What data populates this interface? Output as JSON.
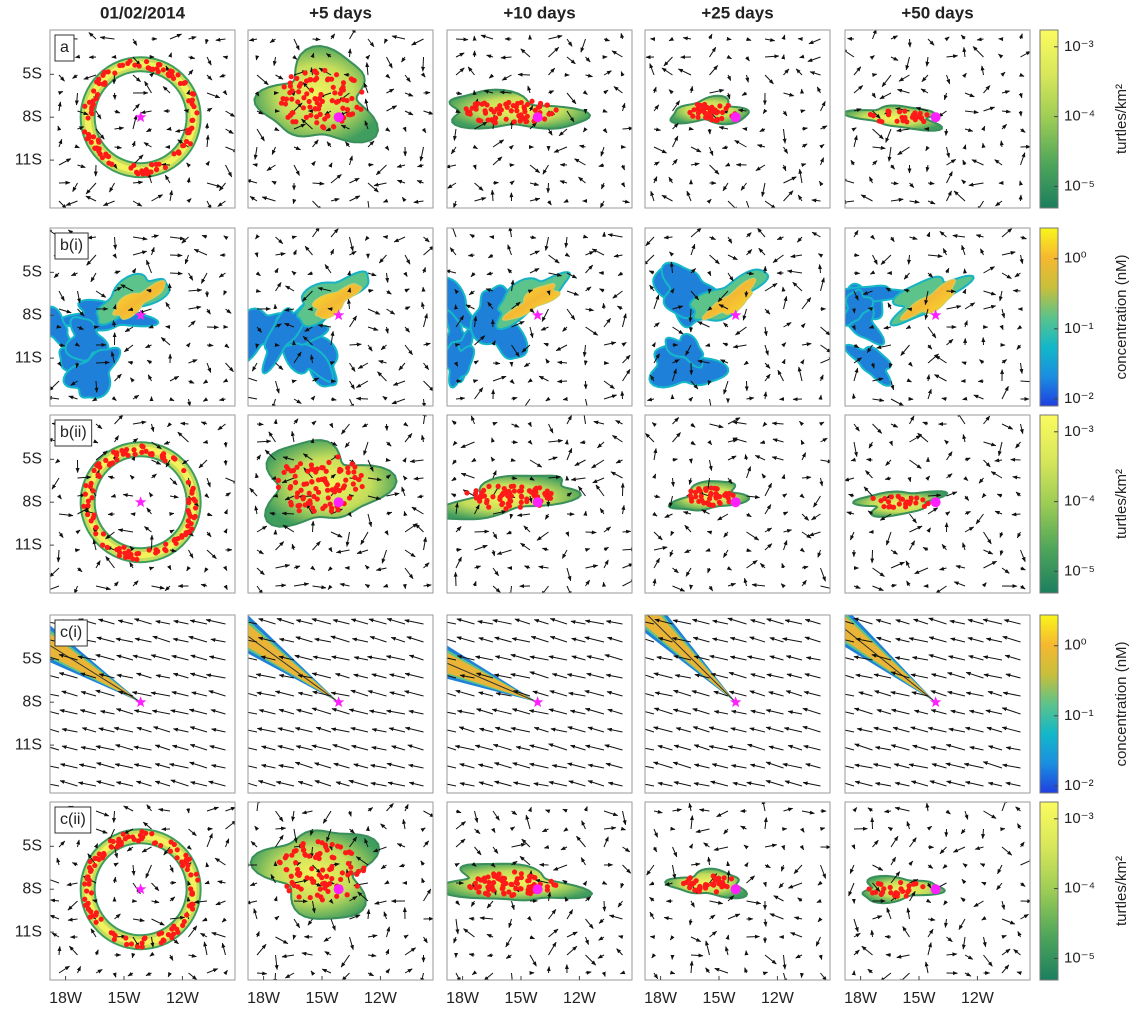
{
  "chart_data": {
    "type": "map",
    "columns": [
      "01/02/2014",
      "+5 days",
      "+10 days",
      "+25 days",
      "+50 days"
    ],
    "rows": [
      {
        "label": "a",
        "colorbar": 0
      },
      {
        "label": "b(i)",
        "colorbar": 1
      },
      {
        "label": "b(ii)",
        "colorbar": 0
      },
      {
        "label": "c(i)",
        "colorbar": 1
      },
      {
        "label": "c(ii)",
        "colorbar": 0
      }
    ],
    "xlim": [
      -18.8,
      -9.3
    ],
    "ylim": [
      -14.35,
      -1.9
    ],
    "xticks": [
      {
        "value": -18,
        "label": "18W"
      },
      {
        "value": -15,
        "label": "15W"
      },
      {
        "value": -12,
        "label": "12W"
      }
    ],
    "yticks": [
      {
        "value": -5,
        "label": "5S"
      },
      {
        "value": -8,
        "label": "8S"
      },
      {
        "value": -11,
        "label": "11S"
      }
    ],
    "colorbars": [
      {
        "label": "turtles/km²",
        "log_scale": true,
        "lim": [
          4.9e-06,
          0.00174
        ],
        "ticks": [
          {
            "value": 0.001,
            "label": "10⁻³"
          },
          {
            "value": 0.0001,
            "label": "10⁻⁴"
          },
          {
            "value": 1e-05,
            "label": "10⁻⁵"
          }
        ],
        "colors": [
          "#1b7f5e",
          "#4fa65a",
          "#9ccc55",
          "#d8e75a",
          "#fbfb5e"
        ]
      },
      {
        "label": "concentration (nM)",
        "log_scale": true,
        "lim": [
          0.0079,
          2.75
        ],
        "ticks": [
          {
            "value": 1,
            "label": "10⁰"
          },
          {
            "value": 0.1,
            "label": "10⁻¹"
          },
          {
            "value": 0.01,
            "label": "10⁻²"
          }
        ],
        "colors": [
          "#1f3fe0",
          "#1a8fe0",
          "#12b8c8",
          "#5cc38a",
          "#c9bf3a",
          "#f6b830",
          "#f9f51a"
        ]
      }
    ],
    "source_color": "#ff20ff",
    "particle_color": "#ff1a1a"
  }
}
